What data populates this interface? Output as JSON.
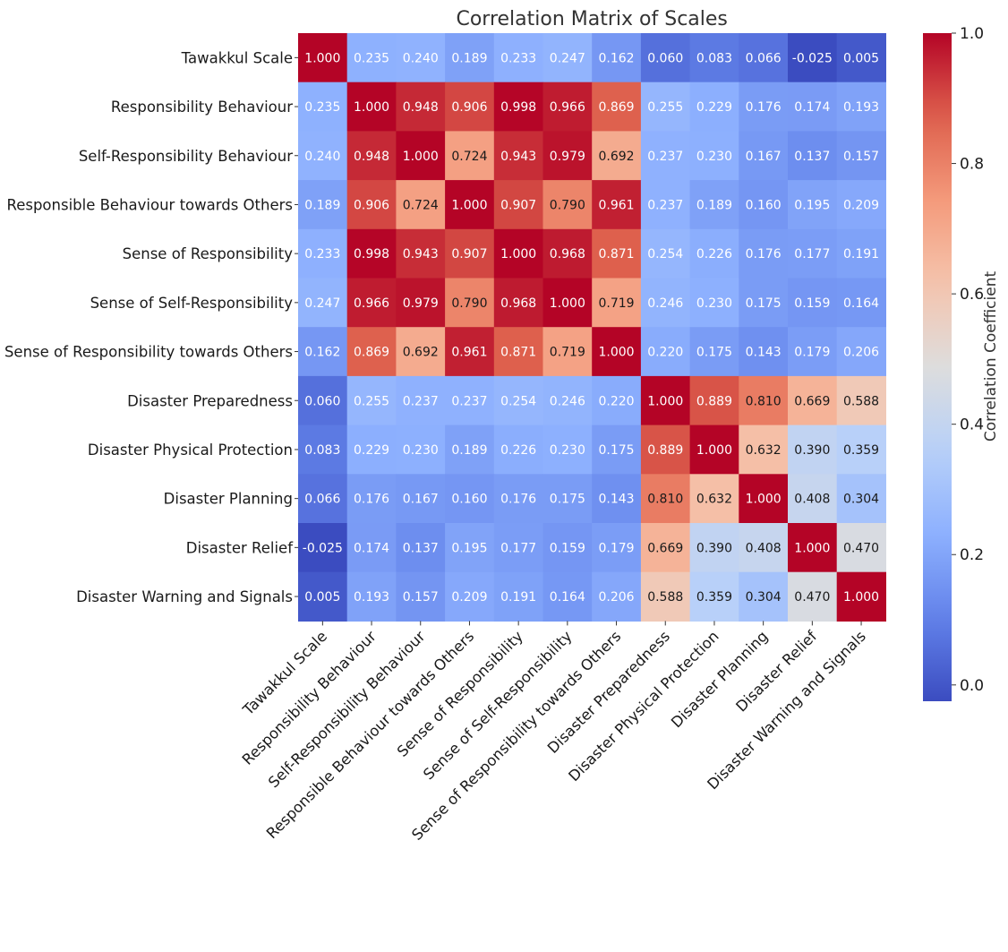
{
  "chart_data": {
    "type": "heatmap",
    "title": "Correlation Matrix of Scales",
    "labels": [
      "Tawakkul Scale",
      "Responsibility Behaviour",
      "Self-Responsibility Behaviour",
      "Responsible Behaviour towards Others",
      "Sense of Responsibility",
      "Sense of Self-Responsibility",
      "Sense of Responsibility towards Others",
      "Disaster Preparedness",
      "Disaster Physical Protection",
      "Disaster Planning",
      "Disaster Relief",
      "Disaster Warning and Signals"
    ],
    "values": [
      [
        1.0,
        0.235,
        0.24,
        0.189,
        0.233,
        0.247,
        0.162,
        0.06,
        0.083,
        0.066,
        -0.025,
        0.005
      ],
      [
        0.235,
        1.0,
        0.948,
        0.906,
        0.998,
        0.966,
        0.869,
        0.255,
        0.229,
        0.176,
        0.174,
        0.193
      ],
      [
        0.24,
        0.948,
        1.0,
        0.724,
        0.943,
        0.979,
        0.692,
        0.237,
        0.23,
        0.167,
        0.137,
        0.157
      ],
      [
        0.189,
        0.906,
        0.724,
        1.0,
        0.907,
        0.79,
        0.961,
        0.237,
        0.189,
        0.16,
        0.195,
        0.209
      ],
      [
        0.233,
        0.998,
        0.943,
        0.907,
        1.0,
        0.968,
        0.871,
        0.254,
        0.226,
        0.176,
        0.177,
        0.191
      ],
      [
        0.247,
        0.966,
        0.979,
        0.79,
        0.968,
        1.0,
        0.719,
        0.246,
        0.23,
        0.175,
        0.159,
        0.164
      ],
      [
        0.162,
        0.869,
        0.692,
        0.961,
        0.871,
        0.719,
        1.0,
        0.22,
        0.175,
        0.143,
        0.179,
        0.206
      ],
      [
        0.06,
        0.255,
        0.237,
        0.237,
        0.254,
        0.246,
        0.22,
        1.0,
        0.889,
        0.81,
        0.669,
        0.588
      ],
      [
        0.083,
        0.229,
        0.23,
        0.189,
        0.226,
        0.23,
        0.175,
        0.889,
        1.0,
        0.632,
        0.39,
        0.359
      ],
      [
        0.066,
        0.176,
        0.167,
        0.16,
        0.176,
        0.175,
        0.143,
        0.81,
        0.632,
        1.0,
        0.408,
        0.304
      ],
      [
        -0.025,
        0.174,
        0.137,
        0.195,
        0.177,
        0.159,
        0.179,
        0.669,
        0.39,
        0.408,
        1.0,
        0.47
      ],
      [
        0.005,
        0.193,
        0.157,
        0.209,
        0.191,
        0.164,
        0.206,
        0.588,
        0.359,
        0.304,
        0.47,
        1.0
      ]
    ],
    "value_format": "3 decimals",
    "colormap": "coolwarm",
    "vmin": -0.025,
    "vmax": 1.0,
    "colorbar": {
      "label": "Correlation Coefficient",
      "ticks": [
        0.0,
        0.2,
        0.4,
        0.6,
        0.8,
        1.0
      ],
      "tick_labels": [
        "0.0",
        "0.2",
        "0.4",
        "0.6",
        "0.8",
        "1.0"
      ],
      "position": "right"
    }
  }
}
